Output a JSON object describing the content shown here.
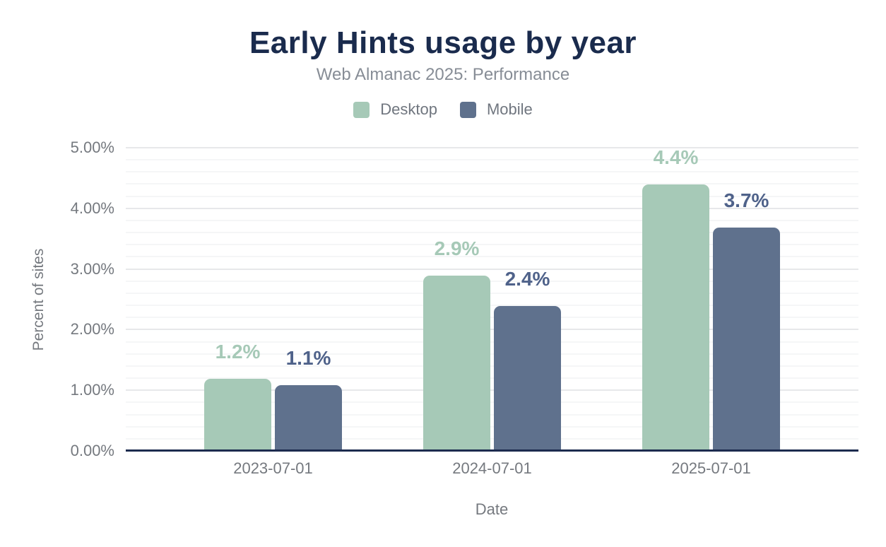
{
  "chart_data": {
    "type": "bar",
    "title": "Early Hints usage by year",
    "subtitle": "Web Almanac 2025: Performance",
    "xlabel": "Date",
    "ylabel": "Percent of sites",
    "categories": [
      "2023-07-01",
      "2024-07-01",
      "2025-07-01"
    ],
    "series": [
      {
        "name": "Desktop",
        "values": [
          1.2,
          2.9,
          4.4
        ],
        "labels": [
          "1.2%",
          "2.9%",
          "4.4%"
        ],
        "color": "#a6c9b7",
        "label_color": "#a6c9b7"
      },
      {
        "name": "Mobile",
        "values": [
          1.1,
          2.4,
          3.7
        ],
        "labels": [
          "1.1%",
          "2.4%",
          "3.7%"
        ],
        "color": "#5f718d",
        "label_color": "#4f628a"
      }
    ],
    "ylim": [
      0,
      5
    ],
    "y_major_step": 1,
    "y_minor_step": 0.2,
    "y_tick_labels": [
      "0.00%",
      "1.00%",
      "2.00%",
      "3.00%",
      "4.00%",
      "5.00%"
    ],
    "grid": "on",
    "legend_position": "top"
  },
  "colors": {
    "background": "#ffffff",
    "title": "#1a2b4d",
    "subtitle": "#878d96",
    "axis_text": "#75797f",
    "axis_line": "#1c2b4f",
    "grid_major": "#e7e8ea",
    "grid_minor": "#f5f6f7",
    "desktop": "#a6c9b7",
    "mobile": "#5f718d"
  }
}
